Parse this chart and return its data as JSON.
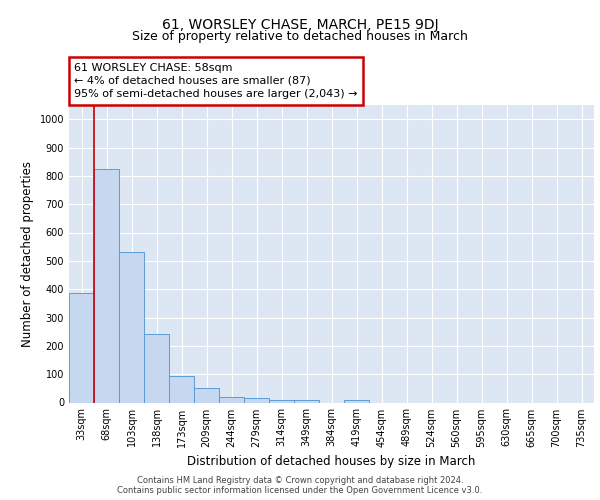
{
  "title": "61, WORSLEY CHASE, MARCH, PE15 9DJ",
  "subtitle": "Size of property relative to detached houses in March",
  "xlabel": "Distribution of detached houses by size in March",
  "ylabel": "Number of detached properties",
  "bar_labels": [
    "33sqm",
    "68sqm",
    "103sqm",
    "138sqm",
    "173sqm",
    "209sqm",
    "244sqm",
    "279sqm",
    "314sqm",
    "349sqm",
    "384sqm",
    "419sqm",
    "454sqm",
    "489sqm",
    "524sqm",
    "560sqm",
    "595sqm",
    "630sqm",
    "665sqm",
    "700sqm",
    "735sqm"
  ],
  "bar_values": [
    385,
    825,
    530,
    243,
    95,
    52,
    20,
    17,
    10,
    10,
    0,
    10,
    0,
    0,
    0,
    0,
    0,
    0,
    0,
    0,
    0
  ],
  "bar_color": "#c5d8f0",
  "bar_edge_color": "#5b9bd5",
  "background_color": "#dde6f3",
  "grid_color": "#ffffff",
  "vline_color": "#cc0000",
  "annotation_text": "61 WORSLEY CHASE: 58sqm\n← 4% of detached houses are smaller (87)\n95% of semi-detached houses are larger (2,043) →",
  "annotation_box_color": "#ffffff",
  "annotation_box_edge": "#cc0000",
  "ylim": [
    0,
    1050
  ],
  "yticks": [
    0,
    100,
    200,
    300,
    400,
    500,
    600,
    700,
    800,
    900,
    1000
  ],
  "footer": "Contains HM Land Registry data © Crown copyright and database right 2024.\nContains public sector information licensed under the Open Government Licence v3.0.",
  "title_fontsize": 10,
  "subtitle_fontsize": 9,
  "tick_fontsize": 7,
  "ylabel_fontsize": 8.5,
  "xlabel_fontsize": 8.5,
  "annotation_fontsize": 8,
  "footer_fontsize": 6,
  "fig_background": "#f0f0f0"
}
